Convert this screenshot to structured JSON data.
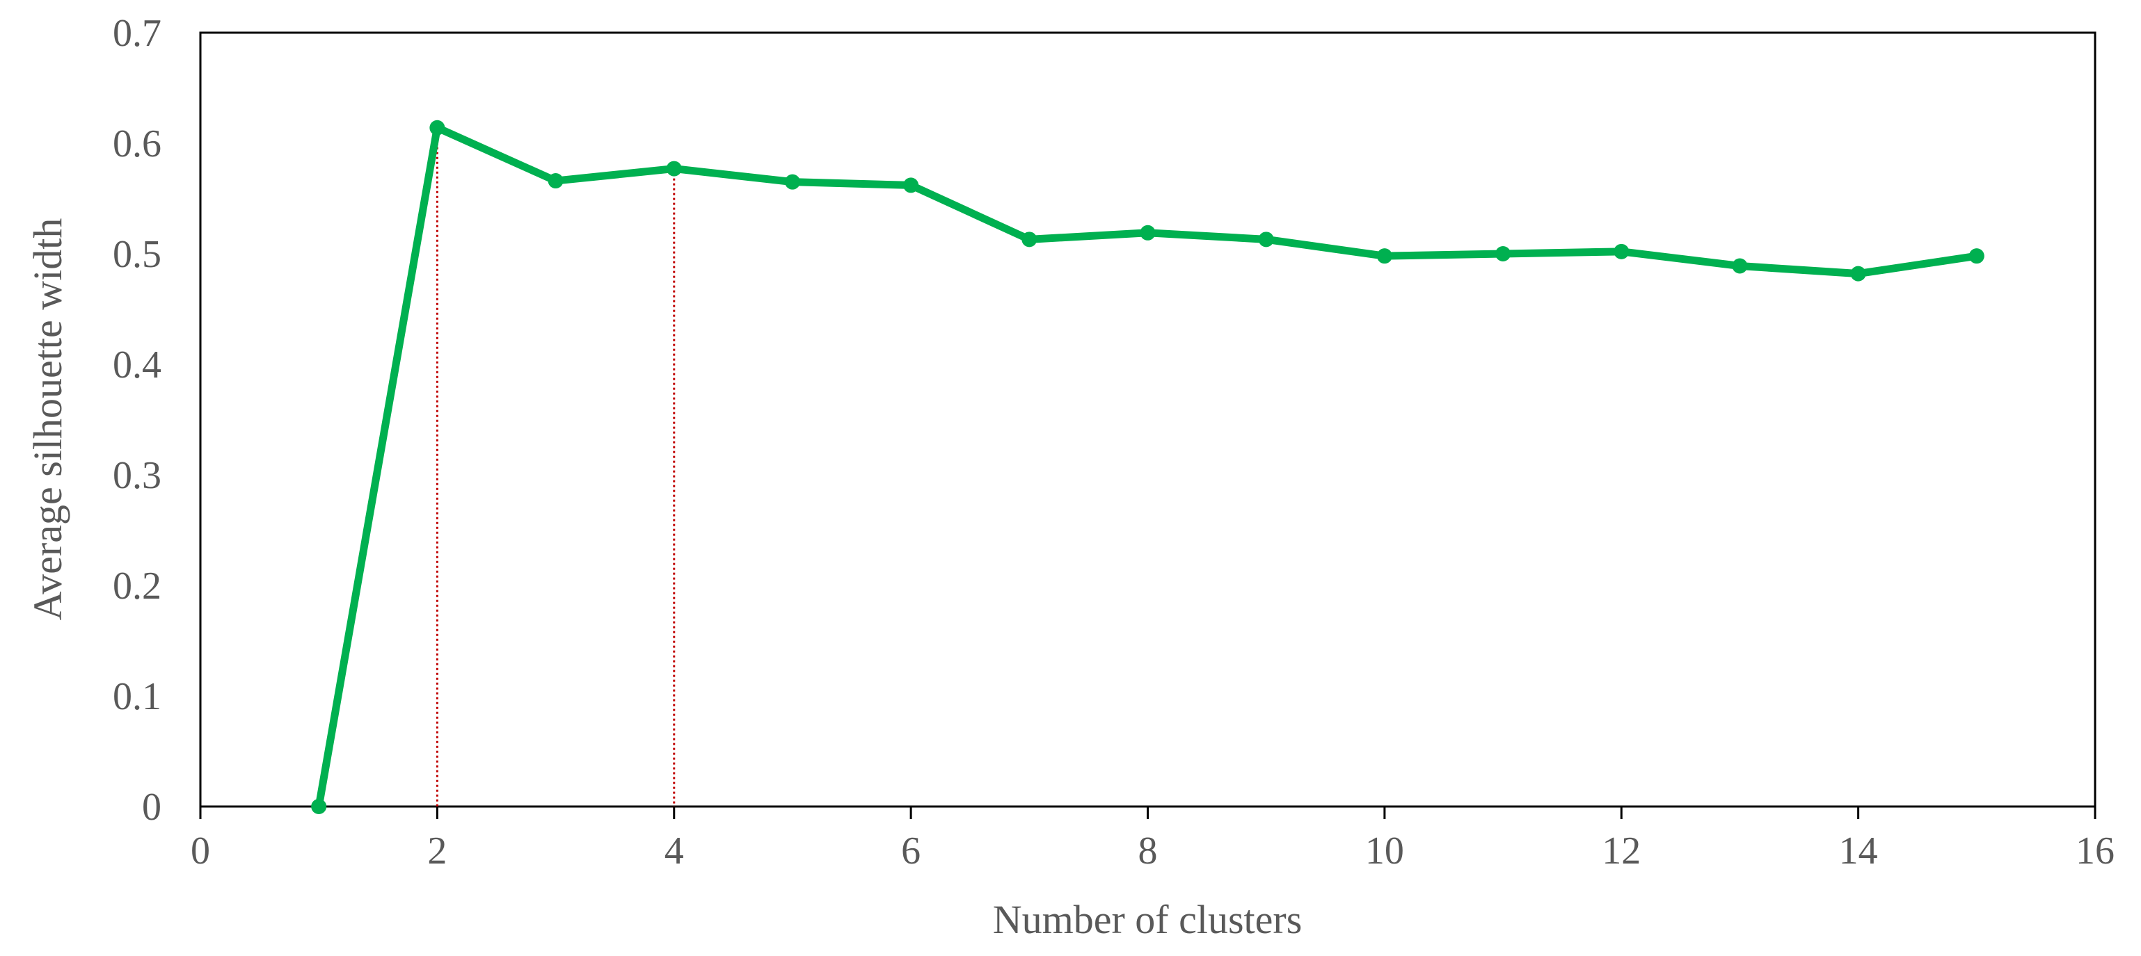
{
  "chart_data": {
    "type": "scatter",
    "title": "",
    "xlabel": "Number of clusters",
    "ylabel": "Average silhouette width",
    "xlim": [
      0,
      16
    ],
    "ylim": [
      0,
      0.7
    ],
    "x_ticks": [
      0,
      2,
      4,
      6,
      8,
      10,
      12,
      14,
      16
    ],
    "y_ticks": [
      0,
      0.1,
      0.2,
      0.3,
      0.4,
      0.5,
      0.6,
      0.7
    ],
    "x_tick_labels": [
      "0",
      "2",
      "4",
      "6",
      "8",
      "10",
      "12",
      "14",
      "16"
    ],
    "y_tick_labels": [
      "0",
      "0.1",
      "0.2",
      "0.3",
      "0.4",
      "0.5",
      "0.6",
      "0.7"
    ],
    "grid": false,
    "legend": "none",
    "series": [
      {
        "x": [
          1,
          2,
          3,
          4,
          5,
          6,
          7,
          8,
          9,
          10,
          11,
          12,
          13,
          14,
          15
        ],
        "y": [
          0.0,
          0.614,
          0.566,
          0.577,
          0.565,
          0.562,
          0.513,
          0.519,
          0.513,
          0.498,
          0.5,
          0.502,
          0.489,
          0.482,
          0.498
        ],
        "color": "#00b050",
        "style": "line-with-markers"
      }
    ],
    "reference_lines": [
      {
        "x": 2,
        "y": 0.614,
        "color": "#c00000",
        "style": "dotted"
      },
      {
        "x": 4,
        "y": 0.577,
        "color": "#c00000",
        "style": "dotted"
      }
    ]
  }
}
